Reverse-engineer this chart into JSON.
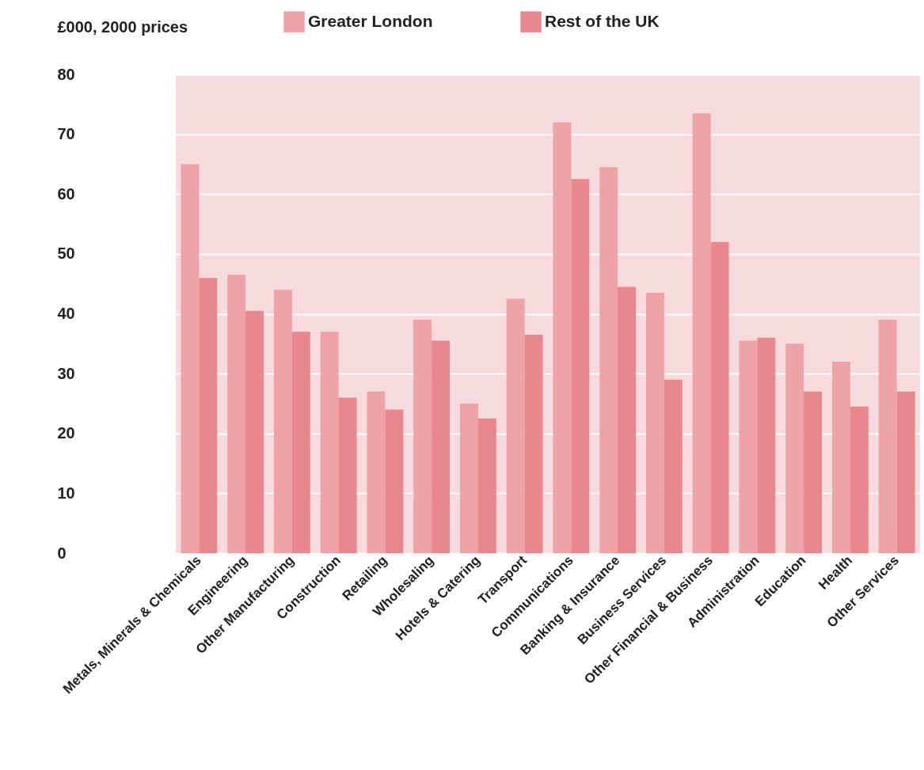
{
  "chart_data": {
    "type": "bar",
    "ylabel": "£000, 2000 prices",
    "categories": [
      "Metals, Minerals & Chemicals",
      "Engineering",
      "Other Manufacturing",
      "Construction",
      "Retailing",
      "Wholesaling",
      "Hotels & Catering",
      "Transport",
      "Communications",
      "Banking & Insurance",
      "Business Services",
      "Other Financial & Business",
      "Administration",
      "Education",
      "Health",
      "Other Services"
    ],
    "series": [
      {
        "name": "Greater London",
        "color": "#eea3a7",
        "values": [
          65,
          46.5,
          44,
          37,
          27,
          39,
          25,
          42.5,
          72,
          64.5,
          43.5,
          73.5,
          35.5,
          35,
          32,
          39
        ]
      },
      {
        "name": "Rest of the UK",
        "color": "#e8878e",
        "values": [
          46,
          40.5,
          37,
          26,
          24,
          35.5,
          22.5,
          36.5,
          62.5,
          44.5,
          29,
          52,
          36,
          27,
          24.5,
          27
        ]
      }
    ],
    "ylim": [
      0,
      80
    ],
    "yticks": [
      0,
      10,
      20,
      30,
      40,
      50,
      60,
      70,
      80
    ],
    "grid": "y",
    "legend": "top"
  }
}
